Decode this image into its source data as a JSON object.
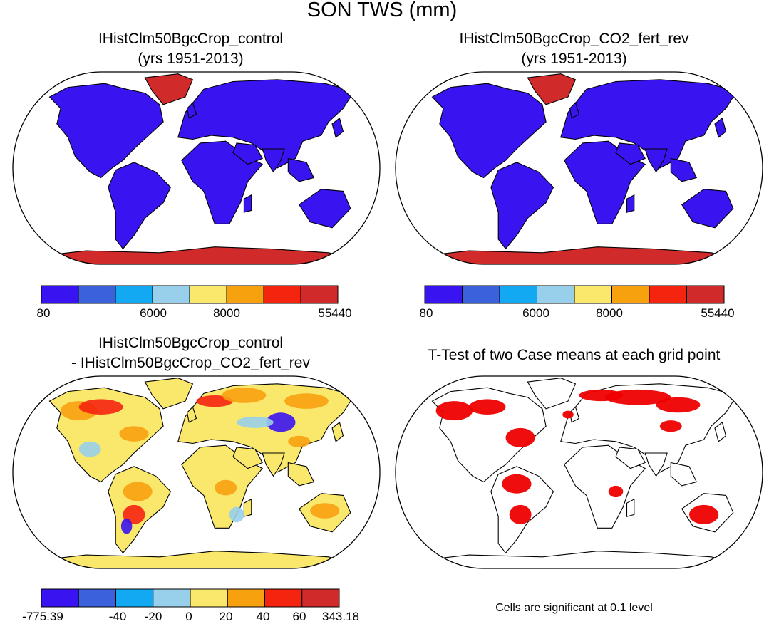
{
  "figure": {
    "title": "SON TWS (mm)"
  },
  "panels": [
    {
      "id": "control",
      "title_line1": "IHistClm50BgcCrop_control",
      "title_line2": "(yrs 1951-2013)"
    },
    {
      "id": "co2",
      "title_line1": "IHistClm50BgcCrop_CO2_fert_rev",
      "title_line2": "(yrs 1951-2013)"
    },
    {
      "id": "diff",
      "title_line1": "IHistClm50BgcCrop_control",
      "title_line2": "- IHistClm50BgcCrop_CO2_fert_rev"
    },
    {
      "id": "ttest",
      "title_line1": "T-Test of two Case means at each grid point",
      "title_line2": ""
    }
  ],
  "colorbars": {
    "abs": {
      "colors": [
        "#3a14f0",
        "#3b62dc",
        "#12a8f2",
        "#98cfea",
        "#fae86d",
        "#f7a10f",
        "#f5240f",
        "#d02a2a"
      ],
      "labels": [
        "80",
        "6000",
        "8000",
        "55440"
      ]
    },
    "diff": {
      "colors": [
        "#3a14f0",
        "#3b62dc",
        "#12a8f2",
        "#98cfea",
        "#fae86d",
        "#f7a10f",
        "#f5240f",
        "#d02a2a"
      ],
      "labels": [
        "-775.39",
        "-40",
        "-20",
        "0",
        "20",
        "40",
        "60",
        "343.18"
      ]
    }
  },
  "note": "Cells are significant at 0.1 level",
  "colors": {
    "land_abs": "#3a14f0",
    "ice_abs": "#d02a2a",
    "land_diff": "#fae86d",
    "diff_pos": "#f7a10f",
    "diff_high": "#f5240f",
    "diff_neg": "#98cfea",
    "diff_low": "#3a14f0",
    "signif": "#ee0000"
  }
}
